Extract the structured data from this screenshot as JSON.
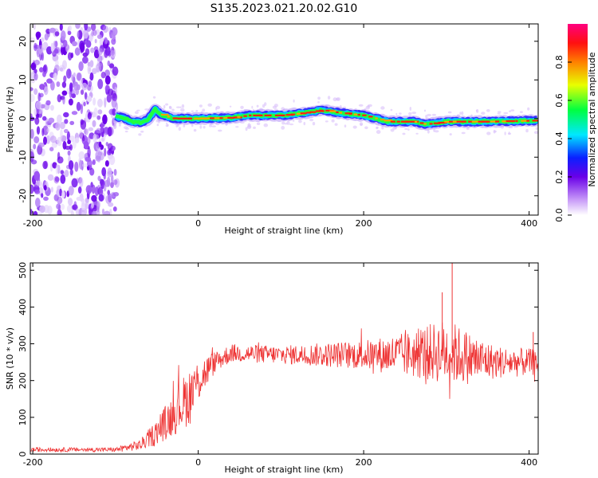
{
  "title": "S135.2023.021.20.02.G10",
  "chart_data": [
    {
      "type": "heatmap",
      "xlabel": "Height of straight line (km)",
      "ylabel": "Frequency (Hz)",
      "xlim": [
        -203,
        411
      ],
      "ylim": [
        -25,
        24.5
      ],
      "xticks": [
        -200,
        0,
        200,
        400
      ],
      "yticks": [
        -20,
        -10,
        0,
        10,
        20
      ],
      "colorbar": {
        "label": "Normalized spectral amplitude",
        "range": [
          0,
          1
        ],
        "ticks": [
          "0.0",
          "0.2",
          "0.4",
          "0.6",
          "0.8"
        ]
      },
      "ridge": {
        "x": [
          -100,
          -90,
          -80,
          -70,
          -60,
          -52,
          -45,
          -30,
          0,
          40,
          60,
          100,
          130,
          150,
          170,
          200,
          230,
          260,
          275,
          300,
          350,
          411
        ],
        "freq": [
          0.5,
          0.2,
          -0.8,
          -1,
          -0.2,
          2.5,
          1,
          0,
          0,
          0.2,
          0.8,
          0.8,
          1.5,
          2.2,
          1.5,
          0.8,
          -0.8,
          -0.8,
          -1.5,
          -0.8,
          -0.8,
          -0.5
        ]
      }
    },
    {
      "type": "line",
      "xlabel": "Height of straight line (km)",
      "ylabel": "SNR (10 * v/v)",
      "xlim": [
        -203,
        411
      ],
      "ylim": [
        0,
        520
      ],
      "xticks": [
        -200,
        0,
        200,
        400
      ],
      "yticks": [
        0,
        100,
        200,
        300,
        400,
        500
      ],
      "series": [
        {
          "color": "#ee3333",
          "envelope": {
            "x": [
              -203,
              -100,
              -70,
              -50,
              -30,
              -10,
              0,
              20,
              40,
              100,
              200,
              250,
              300,
              330,
              360,
              411
            ],
            "mean": [
              12,
              12,
              25,
              60,
              110,
              160,
              200,
              250,
              275,
              270,
              270,
              270,
              280,
              260,
              250,
              250
            ],
            "amp": [
              6,
              6,
              15,
              35,
              60,
              80,
              60,
              30,
              25,
              25,
              40,
              60,
              90,
              70,
              45,
              35
            ]
          },
          "spikes": [
            {
              "x": 307,
              "y": 520
            },
            {
              "x": 295,
              "y": 440
            },
            {
              "x": 405,
              "y": 332
            }
          ]
        }
      ]
    }
  ]
}
